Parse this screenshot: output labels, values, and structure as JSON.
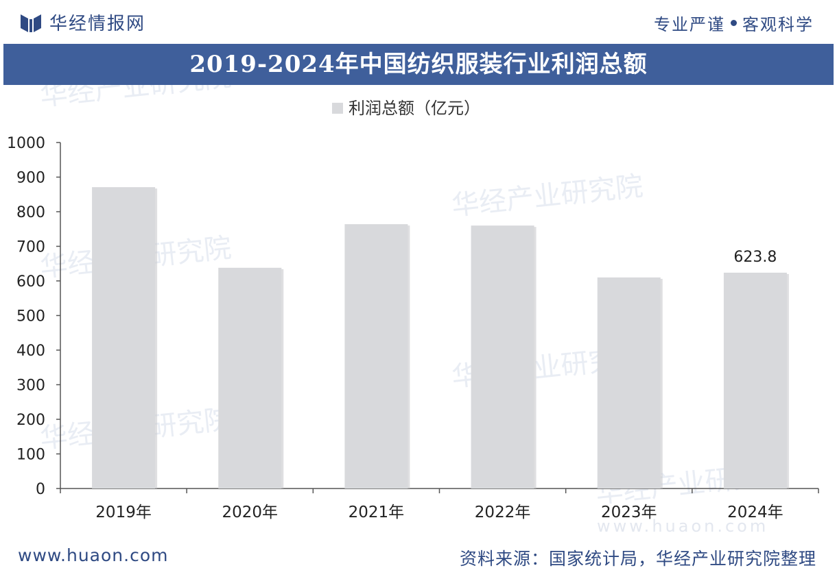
{
  "header": {
    "brand": "华经情报网",
    "slogan_left": "专业严谨",
    "slogan_right": "客观科学"
  },
  "colors": {
    "brand_blue": "#2f4a83",
    "title_bar": "#3f5f9b",
    "bar_fill": "#d8d9dc",
    "axis": "#555555"
  },
  "chart_data": {
    "type": "bar",
    "title": "2019-2024年中国纺织服装行业利润总额",
    "categories": [
      "2019年",
      "2020年",
      "2021年",
      "2022年",
      "2023年",
      "2024年"
    ],
    "series": [
      {
        "name": "利润总额（亿元）",
        "values": [
          871,
          638,
          764,
          760,
          610,
          623.8
        ]
      }
    ],
    "data_labels": [
      null,
      null,
      null,
      null,
      null,
      "623.8"
    ],
    "ylim": [
      0,
      1000
    ],
    "yticks": [
      0,
      100,
      200,
      300,
      400,
      500,
      600,
      700,
      800,
      900,
      1000
    ],
    "legend_position": "top-center",
    "grid": false
  },
  "watermark": {
    "text": "华经产业研究院",
    "url": "www.huaon.com"
  },
  "footer": {
    "url": "www.huaon.com",
    "source": "资料来源：国家统计局，华经产业研究院整理"
  }
}
